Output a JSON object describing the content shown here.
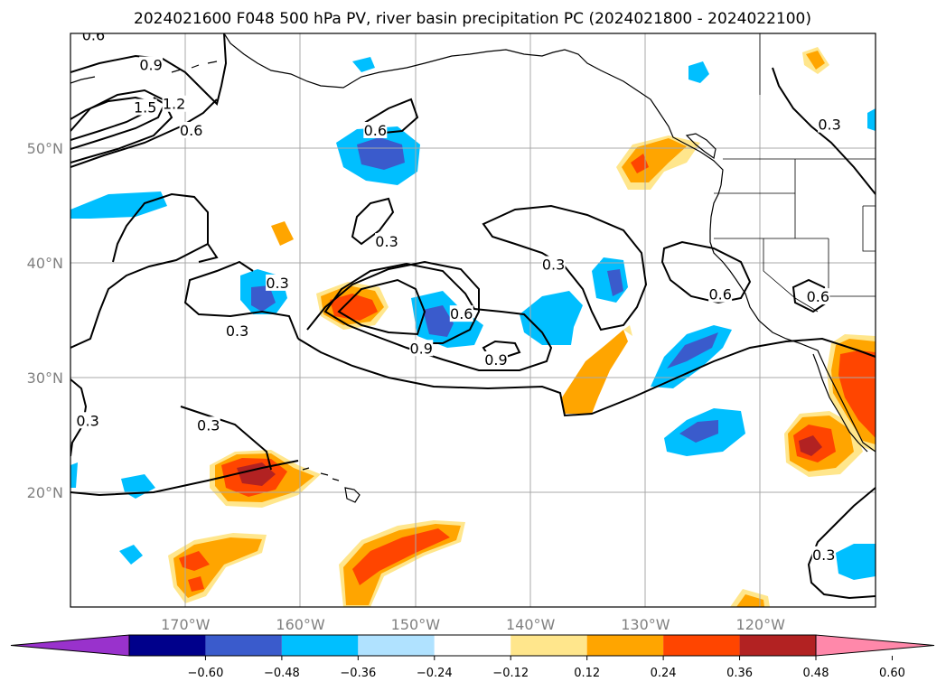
{
  "title": "2024021600 F048 500 hPa PV, river basin precipitation PC (2024021800 - 2024022100)",
  "map": {
    "lon_range": [
      -180,
      -110
    ],
    "lat_range": [
      10,
      60
    ],
    "lon_ticks": [
      {
        "value": -170,
        "label": "170°W"
      },
      {
        "value": -160,
        "label": "160°W"
      },
      {
        "value": -150,
        "label": "150°W"
      },
      {
        "value": -140,
        "label": "140°W"
      },
      {
        "value": -130,
        "label": "130°W"
      },
      {
        "value": -120,
        "label": "120°W"
      }
    ],
    "lat_ticks": [
      {
        "value": 20,
        "label": "20°N"
      },
      {
        "value": 30,
        "label": "30°N"
      },
      {
        "value": 40,
        "label": "40°N"
      },
      {
        "value": 50,
        "label": "50°N"
      }
    ],
    "grid": true,
    "contour_labels": [
      {
        "text": "0.6",
        "lon": -178,
        "lat": 59.8
      },
      {
        "text": "0.9",
        "lon": -173,
        "lat": 57.2
      },
      {
        "text": "1.5",
        "lon": -173.5,
        "lat": 53.5
      },
      {
        "text": "1.2",
        "lon": -171,
        "lat": 53.8
      },
      {
        "text": "0.6",
        "lon": -169.5,
        "lat": 51.5
      },
      {
        "text": "0.6",
        "lon": -153.5,
        "lat": 51.5
      },
      {
        "text": "0.3",
        "lon": -152.5,
        "lat": 41.8
      },
      {
        "text": "0.3",
        "lon": -162,
        "lat": 38.2
      },
      {
        "text": "0.3",
        "lon": -165.5,
        "lat": 34
      },
      {
        "text": "0.9",
        "lon": -149.5,
        "lat": 32.5
      },
      {
        "text": "0.6",
        "lon": -146,
        "lat": 35.5
      },
      {
        "text": "0.9",
        "lon": -143,
        "lat": 31.5
      },
      {
        "text": "0.3",
        "lon": -138,
        "lat": 39.8
      },
      {
        "text": "0.6",
        "lon": -123.5,
        "lat": 37.2
      },
      {
        "text": "0.6",
        "lon": -115,
        "lat": 37
      },
      {
        "text": "0.3",
        "lon": -114,
        "lat": 52
      },
      {
        "text": "0.3",
        "lon": -178.5,
        "lat": 26.2
      },
      {
        "text": "0.3",
        "lon": -168,
        "lat": 25.8
      },
      {
        "text": "0.3",
        "lon": -114.5,
        "lat": 14.5
      }
    ]
  },
  "colorbar": {
    "ticks": [
      "−0.60",
      "−0.48",
      "−0.36",
      "−0.24",
      "−0.12",
      "0.12",
      "0.24",
      "0.36",
      "0.48",
      "0.60"
    ],
    "colors": [
      "#9932cc",
      "#00008b",
      "#3a5bcc",
      "#00bfff",
      "#b0e2ff",
      "#ffffff",
      "#ffe68c",
      "#ffa500",
      "#ff4500",
      "#b22222",
      "#ff88aa"
    ]
  }
}
